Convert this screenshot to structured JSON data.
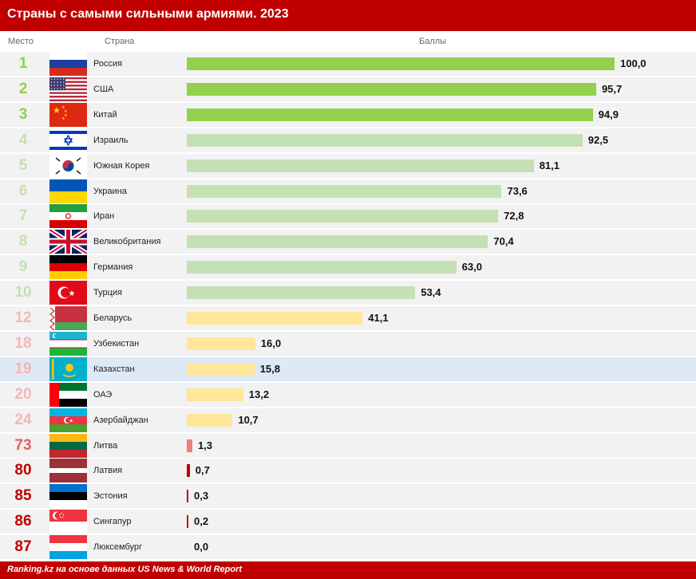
{
  "header": {
    "title": "Страны с самыми сильными армиями. 2023"
  },
  "columns": {
    "place": "Место",
    "country": "Страна",
    "score": "Баллы"
  },
  "footer": {
    "source": "Ranking.kz на основе данных US News & World Report"
  },
  "colors": {
    "header_bg": "#c00000",
    "top3_bar": "#92d050",
    "top3_rank": "#92d050",
    "top10_bar": "#c5e0b4",
    "top10_rank": "#c5e0b4",
    "mid_bar": "#ffe699",
    "mid_rank": "#f4b6b6",
    "low_bar": "#f08080",
    "low_rank": "#e06060",
    "bottom_bar": "#c00000",
    "bottom_rank": "#c00000",
    "highlight_row": "#dde9f5",
    "alt_row": "#f2f2f2"
  },
  "chart_data": {
    "type": "bar",
    "title": "Страны с самыми сильными армиями. 2023",
    "xlabel": "Баллы",
    "ylabel": "Страна",
    "xlim": [
      0,
      100
    ],
    "grid": false,
    "highlighted_category": "Казахстан",
    "categories": [
      "Россия",
      "США",
      "Китай",
      "Израиль",
      "Южная Корея",
      "Украина",
      "Иран",
      "Великобритания",
      "Германия",
      "Турция",
      "Беларусь",
      "Узбекистан",
      "Казахстан",
      "ОАЭ",
      "Азербайджан",
      "Литва",
      "Латвия",
      "Эстония",
      "Сингапур",
      "Люксембург"
    ],
    "ranks": [
      1,
      2,
      3,
      4,
      5,
      6,
      7,
      8,
      9,
      10,
      12,
      18,
      19,
      20,
      24,
      73,
      80,
      85,
      86,
      87
    ],
    "values": [
      100.0,
      95.7,
      94.9,
      92.5,
      81.1,
      73.6,
      72.8,
      70.4,
      63.0,
      53.4,
      41.1,
      16.0,
      15.8,
      13.2,
      10.7,
      1.3,
      0.7,
      0.3,
      0.2,
      0.0
    ],
    "value_labels": [
      "100,0",
      "95,7",
      "94,9",
      "92,5",
      "81,1",
      "73,6",
      "72,8",
      "70,4",
      "63,0",
      "53,4",
      "41,1",
      "16,0",
      "15,8",
      "13,2",
      "10,7",
      "1,3",
      "0,7",
      "0,3",
      "0,2",
      "0,0"
    ],
    "flags": [
      "russia-flag",
      "usa-flag",
      "china-flag",
      "israel-flag",
      "south-korea-flag",
      "ukraine-flag",
      "iran-flag",
      "uk-flag",
      "germany-flag",
      "turkey-flag",
      "belarus-flag",
      "uzbekistan-flag",
      "kazakhstan-flag",
      "uae-flag",
      "azerbaijan-flag",
      "lithuania-flag",
      "latvia-flag",
      "estonia-flag",
      "singapore-flag",
      "luxembourg-flag"
    ]
  }
}
